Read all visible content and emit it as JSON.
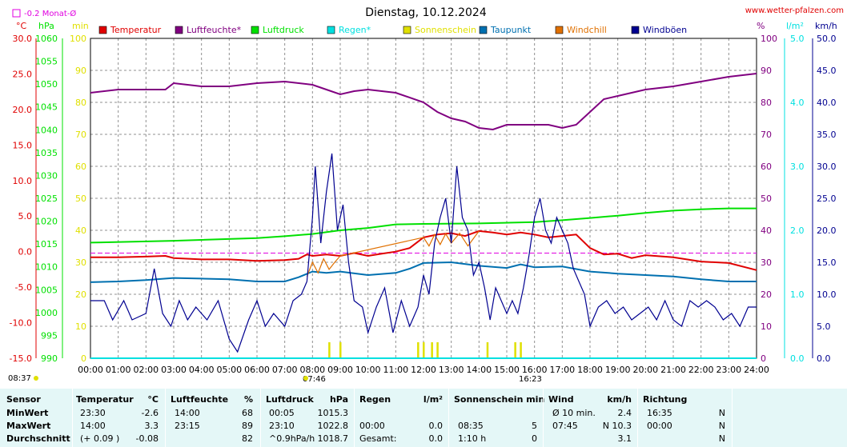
{
  "title": "Dienstag, 10.12.2024",
  "site": "www.wetter-pfalzen.com",
  "monat_marker": "-0.2 Monat-Ø",
  "sunrise": "07:46",
  "sunset": "16:23",
  "corner_time": "08:37",
  "colors": {
    "temperature": "#e00000",
    "humidity": "#800080",
    "pressure": "#00e000",
    "rain": "#00e0e0",
    "sunshine": "#e0e000",
    "dewpoint": "#0070b0",
    "windchill": "#e07000",
    "gust": "#000090",
    "monat": "#e000e0",
    "grid": "#909090"
  },
  "chart_data": {
    "type": "line",
    "title": "Dienstag, 10.12.2024",
    "x_ticks": [
      "00:00",
      "01:00",
      "02:00",
      "03:00",
      "04:00",
      "05:00",
      "06:00",
      "07:00",
      "08:00",
      "09:00",
      "10:00",
      "11:00",
      "12:00",
      "13:00",
      "14:00",
      "15:00",
      "16:00",
      "17:00",
      "18:00",
      "19:00",
      "20:00",
      "21:00",
      "22:00",
      "23:00",
      "24:00"
    ],
    "xlim": [
      0,
      24
    ],
    "grid": true,
    "legend_position": "top",
    "axes": {
      "temperature": {
        "unit": "°C",
        "ylim": [
          -15,
          30
        ],
        "ticks": [
          "30.0",
          "25.0",
          "20.0",
          "15.0",
          "10.0",
          "5.0",
          "0.0",
          "-5.0",
          "-10.0",
          "-15.0"
        ]
      },
      "pressure": {
        "unit": "hPa",
        "ylim": [
          990,
          1060
        ],
        "ticks": [
          "1060",
          "1055",
          "1050",
          "1045",
          "1040",
          "1035",
          "1030",
          "1025",
          "1020",
          "1015",
          "1010",
          "1005",
          "1000",
          "995",
          "990"
        ]
      },
      "sunshine": {
        "unit": "min",
        "ylim": [
          0,
          100
        ],
        "ticks": [
          "100",
          "90",
          "80",
          "70",
          "60",
          "50",
          "40",
          "30",
          "20",
          "10",
          "0"
        ]
      },
      "humidity": {
        "unit": "%",
        "ylim": [
          0,
          100
        ],
        "ticks": [
          "100",
          "90",
          "80",
          "70",
          "60",
          "50",
          "40",
          "30",
          "20",
          "10",
          "0"
        ]
      },
      "rain": {
        "unit": "l/m²",
        "ylim": [
          0,
          5
        ],
        "ticks": [
          "5.0",
          "4.0",
          "3.0",
          "2.0",
          "1.0",
          "0.0"
        ]
      },
      "wind": {
        "unit": "km/h",
        "ylim": [
          0,
          50
        ],
        "ticks": [
          "50.0",
          "45.0",
          "40.0",
          "35.0",
          "30.0",
          "25.0",
          "20.0",
          "15.0",
          "10.0",
          "5.0",
          "0.0"
        ]
      }
    },
    "series": [
      {
        "name": "Temperatur",
        "key": "temperature",
        "axis": "temperature",
        "points": [
          [
            0,
            -0.8
          ],
          [
            1,
            -0.8
          ],
          [
            2,
            -0.7
          ],
          [
            2.7,
            -0.6
          ],
          [
            3,
            -0.9
          ],
          [
            4,
            -1.1
          ],
          [
            5,
            -1.1
          ],
          [
            6,
            -1.3
          ],
          [
            7,
            -1.2
          ],
          [
            7.5,
            -1.0
          ],
          [
            7.8,
            -0.4
          ],
          [
            8,
            -0.6
          ],
          [
            8.5,
            -0.4
          ],
          [
            9,
            -0.6
          ],
          [
            9.5,
            -0.2
          ],
          [
            10,
            -0.6
          ],
          [
            10.5,
            -0.3
          ],
          [
            11,
            0.0
          ],
          [
            11.5,
            0.5
          ],
          [
            12,
            2.0
          ],
          [
            12.5,
            2.4
          ],
          [
            13,
            2.6
          ],
          [
            13.5,
            2.2
          ],
          [
            14,
            2.9
          ],
          [
            14.5,
            2.7
          ],
          [
            15,
            2.4
          ],
          [
            15.5,
            2.7
          ],
          [
            16,
            2.4
          ],
          [
            16.5,
            2.0
          ],
          [
            17,
            2.2
          ],
          [
            17.5,
            2.4
          ],
          [
            18,
            0.5
          ],
          [
            18.5,
            -0.4
          ],
          [
            19,
            -0.3
          ],
          [
            19.5,
            -0.9
          ],
          [
            20,
            -0.5
          ],
          [
            21,
            -0.8
          ],
          [
            22,
            -1.4
          ],
          [
            23,
            -1.6
          ],
          [
            24,
            -2.6
          ]
        ]
      },
      {
        "name": "Luftfeuchte*",
        "key": "humidity",
        "axis": "humidity",
        "points": [
          [
            0,
            83
          ],
          [
            1,
            84
          ],
          [
            2,
            84
          ],
          [
            2.7,
            84
          ],
          [
            3,
            86
          ],
          [
            4,
            85
          ],
          [
            5,
            85
          ],
          [
            5.5,
            85.5
          ],
          [
            6,
            86
          ],
          [
            7,
            86.5
          ],
          [
            8,
            85.5
          ],
          [
            8.5,
            84
          ],
          [
            9,
            82.5
          ],
          [
            9.5,
            83.5
          ],
          [
            10,
            84
          ],
          [
            11,
            83
          ],
          [
            12,
            80
          ],
          [
            12.5,
            77
          ],
          [
            13,
            75
          ],
          [
            13.5,
            74
          ],
          [
            14,
            72
          ],
          [
            14.5,
            71.5
          ],
          [
            15,
            73
          ],
          [
            15.5,
            73
          ],
          [
            16,
            73
          ],
          [
            16.5,
            73
          ],
          [
            17,
            72
          ],
          [
            17.5,
            73
          ],
          [
            18,
            77
          ],
          [
            18.5,
            81
          ],
          [
            19,
            82
          ],
          [
            20,
            84
          ],
          [
            21,
            85
          ],
          [
            22,
            86.5
          ],
          [
            23,
            88
          ],
          [
            24,
            89
          ]
        ]
      },
      {
        "name": "Luftdruck",
        "key": "pressure",
        "axis": "pressure",
        "points": [
          [
            0,
            1015.3
          ],
          [
            3,
            1015.7
          ],
          [
            6,
            1016.3
          ],
          [
            7,
            1016.7
          ],
          [
            8,
            1017.2
          ],
          [
            9,
            1018.0
          ],
          [
            10,
            1018.5
          ],
          [
            11,
            1019.3
          ],
          [
            12,
            1019.4
          ],
          [
            14,
            1019.5
          ],
          [
            16,
            1019.8
          ],
          [
            17,
            1020.2
          ],
          [
            18,
            1020.7
          ],
          [
            19,
            1021.2
          ],
          [
            20,
            1021.8
          ],
          [
            21,
            1022.3
          ],
          [
            22,
            1022.6
          ],
          [
            23,
            1022.8
          ],
          [
            24,
            1022.8
          ]
        ]
      },
      {
        "name": "Regen*",
        "key": "rain",
        "axis": "rain",
        "points": [
          [
            0,
            0
          ],
          [
            24,
            0
          ]
        ]
      },
      {
        "name": "Sonnenschein",
        "key": "sunshine",
        "axis": "sunshine",
        "bars": [
          [
            8.6,
            5
          ],
          [
            9.0,
            5
          ],
          [
            11.8,
            5
          ],
          [
            12.0,
            5
          ],
          [
            12.3,
            5
          ],
          [
            12.5,
            5
          ],
          [
            14.3,
            5
          ],
          [
            15.3,
            5
          ],
          [
            15.5,
            5
          ]
        ]
      },
      {
        "name": "Taupunkt",
        "key": "dewpoint",
        "axis": "temperature",
        "points": [
          [
            0,
            -4.3
          ],
          [
            1,
            -4.2
          ],
          [
            2,
            -4.0
          ],
          [
            3,
            -3.7
          ],
          [
            4,
            -3.8
          ],
          [
            5,
            -3.9
          ],
          [
            6,
            -4.2
          ],
          [
            7,
            -4.2
          ],
          [
            7.5,
            -3.6
          ],
          [
            8,
            -2.8
          ],
          [
            8.5,
            -3.0
          ],
          [
            9,
            -2.8
          ],
          [
            10,
            -3.3
          ],
          [
            11,
            -3.0
          ],
          [
            11.5,
            -2.4
          ],
          [
            12,
            -1.6
          ],
          [
            13,
            -1.5
          ],
          [
            14,
            -2.0
          ],
          [
            15,
            -2.3
          ],
          [
            15.5,
            -1.8
          ],
          [
            16,
            -2.2
          ],
          [
            17,
            -2.1
          ],
          [
            18,
            -2.8
          ],
          [
            19,
            -3.1
          ],
          [
            20,
            -3.3
          ],
          [
            21,
            -3.5
          ],
          [
            22,
            -3.9
          ],
          [
            23,
            -4.2
          ],
          [
            24,
            -4.2
          ]
        ]
      },
      {
        "name": "Windchill",
        "key": "windchill",
        "axis": "temperature",
        "points": [
          [
            7.8,
            -3.5
          ],
          [
            8.0,
            -1.5
          ],
          [
            8.2,
            -3.0
          ],
          [
            8.4,
            -1.0
          ],
          [
            8.6,
            -2.5
          ],
          [
            8.8,
            -1.5
          ],
          [
            9.0,
            -0.6
          ],
          [
            12.0,
            2.0
          ],
          [
            12.2,
            0.8
          ],
          [
            12.4,
            2.4
          ],
          [
            12.6,
            1.0
          ],
          [
            12.8,
            2.5
          ],
          [
            13.0,
            1.2
          ],
          [
            13.3,
            2.6
          ],
          [
            13.6,
            0.8
          ],
          [
            14.0,
            2.9
          ]
        ]
      },
      {
        "name": "Windböen",
        "key": "gust",
        "axis": "wind",
        "points": [
          [
            0,
            9
          ],
          [
            0.5,
            9
          ],
          [
            0.8,
            6
          ],
          [
            1.2,
            9
          ],
          [
            1.5,
            6
          ],
          [
            2.0,
            7
          ],
          [
            2.3,
            14
          ],
          [
            2.6,
            7
          ],
          [
            2.9,
            5
          ],
          [
            3.2,
            9
          ],
          [
            3.5,
            6
          ],
          [
            3.8,
            8
          ],
          [
            4.2,
            6
          ],
          [
            4.6,
            9
          ],
          [
            5.0,
            3
          ],
          [
            5.3,
            1
          ],
          [
            5.7,
            6
          ],
          [
            6.0,
            9
          ],
          [
            6.3,
            5
          ],
          [
            6.6,
            7
          ],
          [
            7.0,
            5
          ],
          [
            7.3,
            9
          ],
          [
            7.6,
            10
          ],
          [
            7.8,
            12
          ],
          [
            8.0,
            22
          ],
          [
            8.1,
            30
          ],
          [
            8.3,
            18
          ],
          [
            8.5,
            26
          ],
          [
            8.7,
            32
          ],
          [
            8.9,
            20
          ],
          [
            9.1,
            24
          ],
          [
            9.3,
            15
          ],
          [
            9.5,
            9
          ],
          [
            9.8,
            8
          ],
          [
            10.0,
            4
          ],
          [
            10.3,
            8
          ],
          [
            10.6,
            11
          ],
          [
            10.9,
            4
          ],
          [
            11.2,
            9
          ],
          [
            11.5,
            5
          ],
          [
            11.8,
            8
          ],
          [
            12.0,
            13
          ],
          [
            12.2,
            10
          ],
          [
            12.4,
            18
          ],
          [
            12.6,
            22
          ],
          [
            12.8,
            25
          ],
          [
            13.0,
            18
          ],
          [
            13.2,
            30
          ],
          [
            13.4,
            22
          ],
          [
            13.6,
            20
          ],
          [
            13.8,
            13
          ],
          [
            14.0,
            15
          ],
          [
            14.2,
            11
          ],
          [
            14.4,
            6
          ],
          [
            14.6,
            11
          ],
          [
            14.8,
            9
          ],
          [
            15.0,
            7
          ],
          [
            15.2,
            9
          ],
          [
            15.4,
            7
          ],
          [
            15.6,
            11
          ],
          [
            15.8,
            16
          ],
          [
            16.0,
            22
          ],
          [
            16.2,
            25
          ],
          [
            16.4,
            20
          ],
          [
            16.6,
            18
          ],
          [
            16.8,
            22
          ],
          [
            17.0,
            20
          ],
          [
            17.2,
            18
          ],
          [
            17.4,
            14
          ],
          [
            17.6,
            12
          ],
          [
            17.8,
            10
          ],
          [
            18.0,
            5
          ],
          [
            18.3,
            8
          ],
          [
            18.6,
            9
          ],
          [
            18.9,
            7
          ],
          [
            19.2,
            8
          ],
          [
            19.5,
            6
          ],
          [
            19.8,
            7
          ],
          [
            20.1,
            8
          ],
          [
            20.4,
            6
          ],
          [
            20.7,
            9
          ],
          [
            21.0,
            6
          ],
          [
            21.3,
            5
          ],
          [
            21.6,
            9
          ],
          [
            21.9,
            8
          ],
          [
            22.2,
            9
          ],
          [
            22.5,
            8
          ],
          [
            22.8,
            6
          ],
          [
            23.1,
            7
          ],
          [
            23.4,
            5
          ],
          [
            23.7,
            8
          ],
          [
            24.0,
            8
          ]
        ]
      }
    ]
  },
  "stats": {
    "headers": {
      "sensor": "Sensor",
      "temperature": "Temperatur",
      "temperature_unit": "°C",
      "humidity": "Luftfeuchte",
      "humidity_unit": "%",
      "pressure": "Luftdruck",
      "pressure_unit": "hPa",
      "rain": "Regen",
      "rain_unit": "l/m²",
      "sun": "Sonnenschein min",
      "wind": "Wind",
      "wind_unit": "km/h",
      "direction": "Richtung"
    },
    "rows": [
      {
        "label": "MinWert",
        "t_time": "23:30",
        "t_val": "-2.6",
        "h_time": "14:00",
        "h_val": "68",
        "p_time": "00:05",
        "p_val": "1015.3",
        "r_time": "",
        "r_val": "",
        "s_time": "",
        "s_val": "",
        "w_time": "Ø 10 min.",
        "w_val": "2.4",
        "d_time": "16:35",
        "d_val": "N"
      },
      {
        "label": "MaxWert",
        "t_time": "14:00",
        "t_val": "3.3",
        "h_time": "23:15",
        "h_val": "89",
        "p_time": "23:10",
        "p_val": "1022.8",
        "r_time": "00:00",
        "r_val": "0.0",
        "s_time": "08:35",
        "s_val": "5",
        "w_time": "07:45",
        "w_val": "N 10.3",
        "d_time": "00:00",
        "d_val": "N"
      },
      {
        "label": "Durchschnitt",
        "t_time": "(+ 0.09 )",
        "t_val": "-0.08",
        "h_time": "",
        "h_val": "82",
        "p_time": "^0.9hPa/h",
        "p_val": "1018.7",
        "r_time": "Gesamt:",
        "r_val": "0.0",
        "s_time": "1:10 h",
        "s_val": "0",
        "w_time": "",
        "w_val": "3.1",
        "d_time": "",
        "d_val": "N"
      }
    ]
  }
}
